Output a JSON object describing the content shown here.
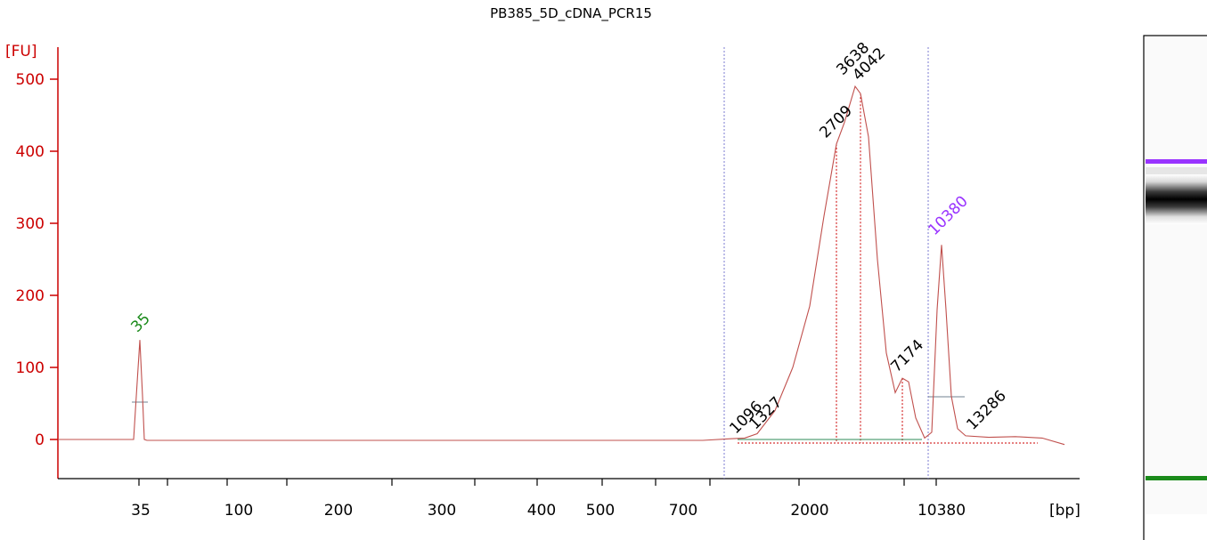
{
  "chart_data": {
    "type": "line",
    "title": "PB385_5D_cDNA_PCR15",
    "ylabel": "[FU]",
    "xlabel": "[bp]",
    "ylim": [
      -60,
      530
    ],
    "y_ticks": [
      0,
      100,
      200,
      300,
      400,
      500
    ],
    "x_tick_labels": [
      "35",
      "100",
      "200",
      "300",
      "400",
      "500",
      "700",
      "2000",
      "10380"
    ],
    "x_scale": "nonlinear (bp)",
    "grid": false,
    "legend": "none",
    "series": [
      {
        "points": [
          [
            "35",
            0
          ],
          [
            "35",
            138
          ],
          [
            "35",
            0
          ],
          [
            "700",
            0
          ],
          [
            "1096",
            2
          ],
          [
            "1327",
            8
          ],
          [
            "2000",
            185
          ],
          [
            "2709",
            410
          ],
          [
            "3638",
            490
          ],
          [
            "4042",
            480
          ],
          [
            "7174",
            85
          ],
          [
            "10380",
            270
          ],
          [
            "13286",
            5
          ]
        ]
      }
    ],
    "peak_labels": [
      {
        "text": "35",
        "color": "#1a8a1a",
        "fu": 138
      },
      {
        "text": "1096",
        "color": "#000000",
        "fu": 2
      },
      {
        "text": "1327",
        "color": "#000000",
        "fu": 8
      },
      {
        "text": "2709",
        "color": "#000000",
        "fu": 410
      },
      {
        "text": "3638",
        "color": "#000000",
        "fu": 490
      },
      {
        "text": "4042",
        "color": "#000000",
        "fu": 480
      },
      {
        "text": "7174",
        "color": "#000000",
        "fu": 85
      },
      {
        "text": "10380",
        "color": "#9933ff",
        "fu": 270
      },
      {
        "text": "13286",
        "color": "#000000",
        "fu": 5
      }
    ],
    "colors": {
      "axis": "#cc0000",
      "trace": "#c0504d",
      "baseline": "#2e8b57",
      "region_marker": "#7b7bd0",
      "upper_marker": "#9933ff",
      "lower_marker": "#1a8a1a"
    }
  }
}
